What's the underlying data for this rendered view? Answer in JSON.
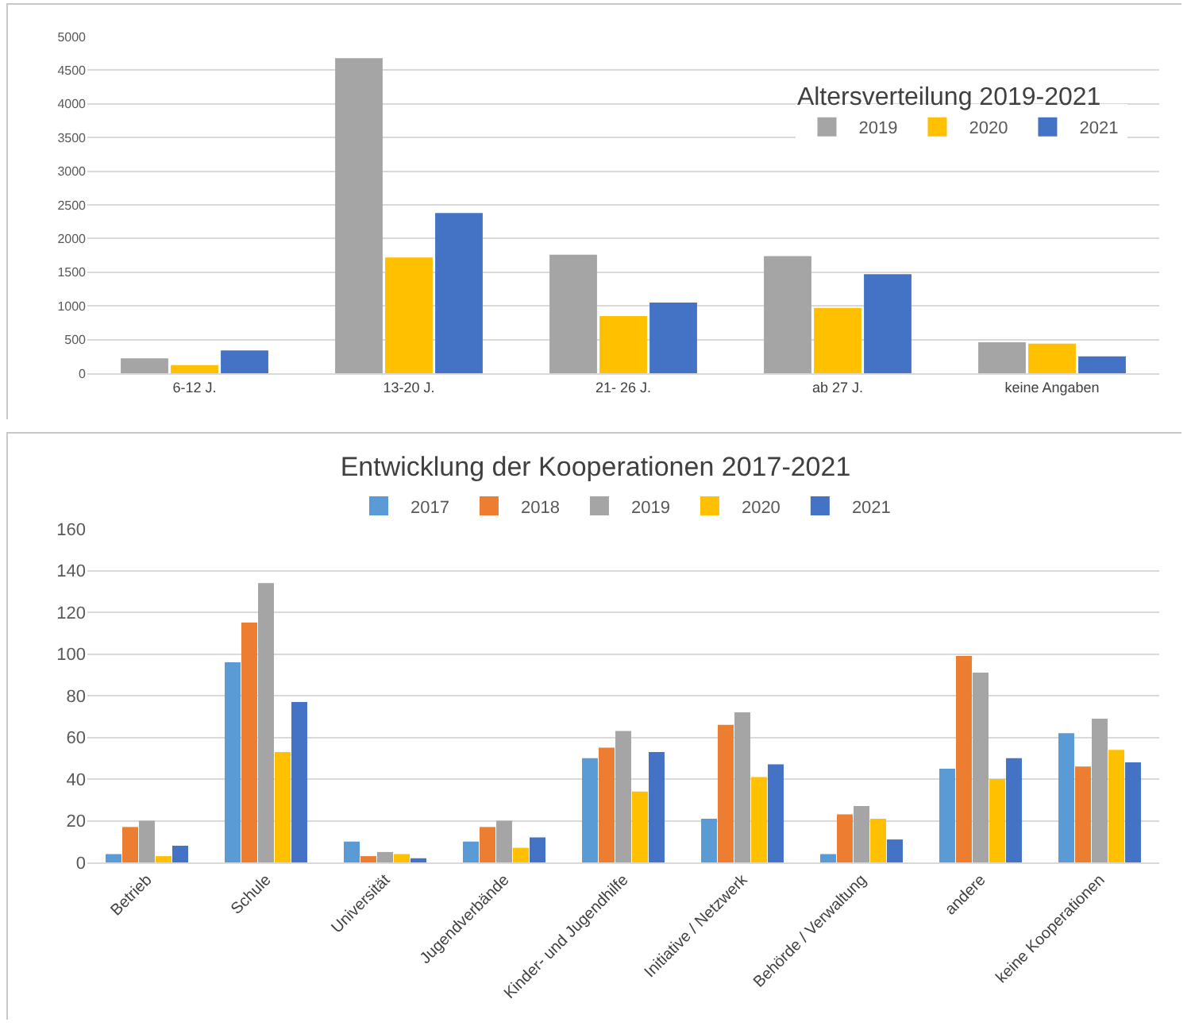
{
  "chart_data": [
    {
      "type": "bar",
      "title": "Altersverteilung 2019-2021",
      "categories": [
        "6-12 J.",
        "13-20 J.",
        "21- 26 J.",
        "ab 27 J.",
        "keine Angaben"
      ],
      "series": [
        {
          "name": "2019",
          "color": "#a5a5a5",
          "values": [
            220,
            4680,
            1760,
            1740,
            460
          ]
        },
        {
          "name": "2020",
          "color": "#ffc000",
          "values": [
            120,
            1720,
            850,
            970,
            440
          ]
        },
        {
          "name": "2021",
          "color": "#4472c4",
          "values": [
            340,
            2380,
            1050,
            1470,
            250
          ]
        }
      ],
      "ylim": [
        0,
        5000
      ],
      "yticks": [
        0,
        500,
        1000,
        1500,
        2000,
        2500,
        3000,
        3500,
        4000,
        4500,
        5000
      ],
      "grid": "y",
      "legend": "top right"
    },
    {
      "type": "bar",
      "title": "Entwicklung der Kooperationen 2017-2021",
      "categories": [
        "Betrieb",
        "Schule",
        "Universität",
        "Jugendverbände",
        "Kinder- und Jugendhilfe",
        "Initiative / Netzwerk",
        "Behörde / Verwaltung",
        "andere",
        "keine Kooperationen"
      ],
      "series": [
        {
          "name": "2017",
          "color": "#5b9bd5",
          "values": [
            4,
            96,
            10,
            10,
            50,
            21,
            4,
            45,
            62
          ]
        },
        {
          "name": "2018",
          "color": "#ed7d31",
          "values": [
            17,
            115,
            3,
            17,
            55,
            66,
            23,
            99,
            46
          ]
        },
        {
          "name": "2019",
          "color": "#a5a5a5",
          "values": [
            20,
            134,
            5,
            20,
            63,
            72,
            27,
            91,
            69
          ]
        },
        {
          "name": "2020",
          "color": "#ffc000",
          "values": [
            3,
            53,
            4,
            7,
            34,
            41,
            21,
            40,
            54
          ]
        },
        {
          "name": "2021",
          "color": "#4472c4",
          "values": [
            8,
            77,
            2,
            12,
            53,
            47,
            11,
            50,
            48
          ]
        }
      ],
      "ylim": [
        0,
        160
      ],
      "yticks": [
        0,
        20,
        40,
        60,
        80,
        100,
        120,
        140,
        160
      ],
      "grid": "y",
      "legend": "top"
    }
  ]
}
